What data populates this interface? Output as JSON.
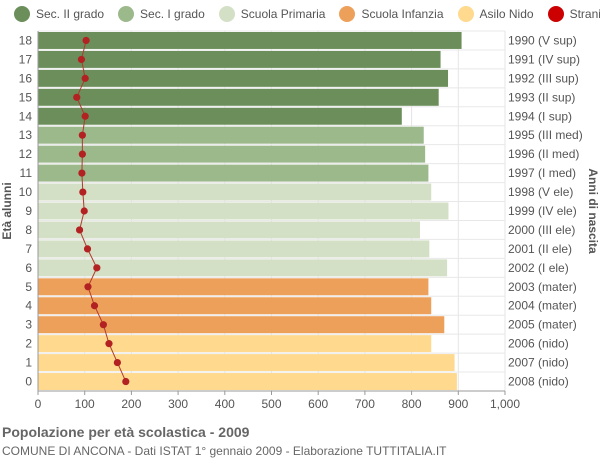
{
  "chart_data": {
    "type": "bar",
    "orientation": "horizontal",
    "title": "Popolazione per età scolastica - 2009",
    "subtitle": "COMUNE DI ANCONA - Dati ISTAT 1° gennaio 2009 - Elaborazione TUTTITALIA.IT",
    "ylabel": "Età alunni",
    "ylabel_right": "Anni di nascita",
    "xlim": [
      0,
      1000
    ],
    "x_ticks": [
      "0",
      "100",
      "200",
      "300",
      "400",
      "500",
      "600",
      "700",
      "800",
      "900",
      "1,000"
    ],
    "grid": true,
    "legend_position": "top",
    "legend": [
      {
        "name": "Sec. II grado",
        "color": "#6b8e5a"
      },
      {
        "name": "Sec. I grado",
        "color": "#9cb98c"
      },
      {
        "name": "Scuola Primaria",
        "color": "#d4e0c6"
      },
      {
        "name": "Scuola Infanzia",
        "color": "#eda05a"
      },
      {
        "name": "Asilo Nido",
        "color": "#fed98e"
      },
      {
        "name": "Stranieri",
        "color": "#cc0000"
      }
    ],
    "rows": [
      {
        "age": "18",
        "birth": "1990 (V sup)",
        "value": 907,
        "stranieri": 103,
        "group": 0
      },
      {
        "age": "17",
        "birth": "1991 (IV sup)",
        "value": 862,
        "stranieri": 93,
        "group": 0
      },
      {
        "age": "16",
        "birth": "1992 (III sup)",
        "value": 878,
        "stranieri": 101,
        "group": 0
      },
      {
        "age": "15",
        "birth": "1993 (II sup)",
        "value": 858,
        "stranieri": 83,
        "group": 0
      },
      {
        "age": "14",
        "birth": "1994 (I sup)",
        "value": 779,
        "stranieri": 101,
        "group": 0
      },
      {
        "age": "13",
        "birth": "1995 (III med)",
        "value": 826,
        "stranieri": 95,
        "group": 1
      },
      {
        "age": "12",
        "birth": "1996 (II med)",
        "value": 829,
        "stranieri": 95,
        "group": 1
      },
      {
        "age": "11",
        "birth": "1997 (I med)",
        "value": 836,
        "stranieri": 94,
        "group": 1
      },
      {
        "age": "10",
        "birth": "1998 (V ele)",
        "value": 842,
        "stranieri": 96,
        "group": 2
      },
      {
        "age": "9",
        "birth": "1999 (IV ele)",
        "value": 879,
        "stranieri": 99,
        "group": 2
      },
      {
        "age": "8",
        "birth": "2000 (III ele)",
        "value": 818,
        "stranieri": 89,
        "group": 2
      },
      {
        "age": "7",
        "birth": "2001 (II ele)",
        "value": 838,
        "stranieri": 106,
        "group": 2
      },
      {
        "age": "6",
        "birth": "2002 (I ele)",
        "value": 876,
        "stranieri": 126,
        "group": 2
      },
      {
        "age": "5",
        "birth": "2003 (mater)",
        "value": 836,
        "stranieri": 107,
        "group": 3
      },
      {
        "age": "4",
        "birth": "2004 (mater)",
        "value": 842,
        "stranieri": 121,
        "group": 3
      },
      {
        "age": "3",
        "birth": "2005 (mater)",
        "value": 870,
        "stranieri": 140,
        "group": 3
      },
      {
        "age": "2",
        "birth": "2006 (nido)",
        "value": 842,
        "stranieri": 152,
        "group": 4
      },
      {
        "age": "1",
        "birth": "2007 (nido)",
        "value": 892,
        "stranieri": 170,
        "group": 4
      },
      {
        "age": "0",
        "birth": "2008 (nido)",
        "value": 897,
        "stranieri": 188,
        "group": 4
      }
    ]
  }
}
